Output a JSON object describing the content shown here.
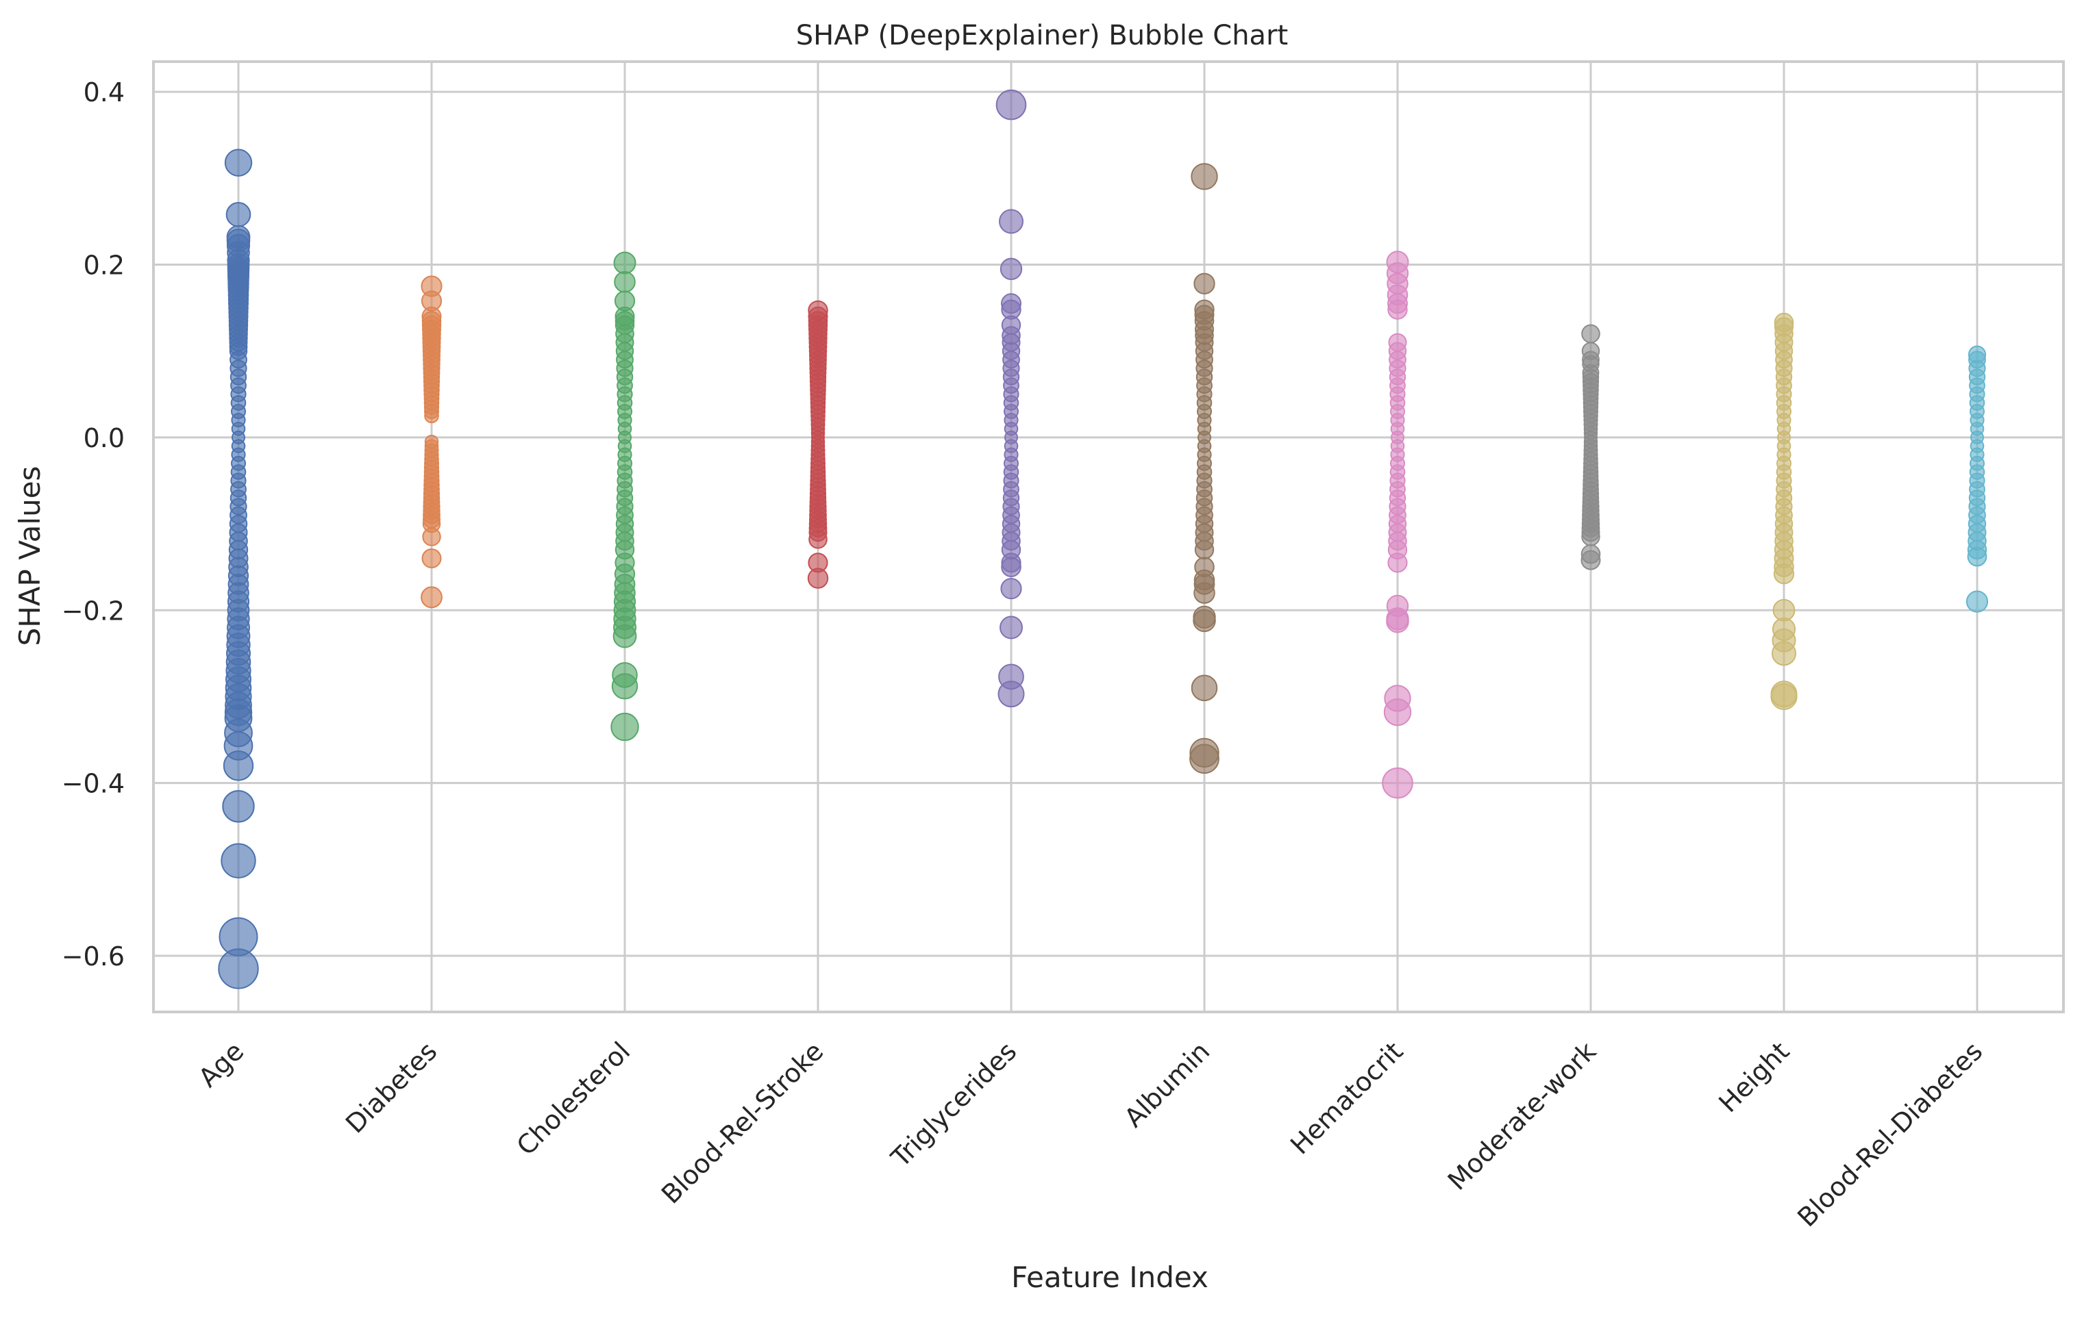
{
  "chart_data": {
    "type": "scatter",
    "title": "SHAP (DeepExplainer) Bubble Chart",
    "xlabel": "Feature Index",
    "ylabel": "SHAP Values",
    "ylim": [
      -0.665,
      0.435
    ],
    "grid": true,
    "yticks": [
      {
        "value": -0.6,
        "label": "−0.6"
      },
      {
        "value": -0.4,
        "label": "−0.4"
      },
      {
        "value": -0.2,
        "label": "−0.2"
      },
      {
        "value": 0.0,
        "label": "0.0"
      },
      {
        "value": 0.2,
        "label": "0.2"
      },
      {
        "value": 0.4,
        "label": "0.4"
      }
    ],
    "categories": [
      "Age",
      "Diabetes",
      "Cholesterol",
      "Blood-Rel-Stroke",
      "Triglycerides",
      "Albumin",
      "Hematocrit",
      "Moderate-work",
      "Height",
      "Blood-Rel-Diabetes"
    ],
    "series": [
      {
        "color": "#4c72b0",
        "values": [
          0.318,
          0.258,
          0.232,
          0.228,
          0.222,
          0.214,
          0.205,
          0.2,
          0.196,
          0.193,
          0.19,
          0.186,
          0.182,
          0.178,
          0.174,
          0.17,
          0.165,
          0.16,
          0.155,
          0.15,
          0.145,
          0.14,
          0.135,
          0.13,
          0.125,
          0.12,
          0.115,
          0.11,
          0.105,
          0.1,
          0.09,
          0.08,
          0.07,
          0.06,
          0.05,
          0.04,
          0.03,
          0.02,
          0.01,
          0.0,
          -0.01,
          -0.02,
          -0.03,
          -0.04,
          -0.05,
          -0.06,
          -0.07,
          -0.08,
          -0.09,
          -0.1,
          -0.11,
          -0.12,
          -0.13,
          -0.14,
          -0.15,
          -0.16,
          -0.17,
          -0.18,
          -0.19,
          -0.2,
          -0.21,
          -0.22,
          -0.23,
          -0.24,
          -0.25,
          -0.26,
          -0.27,
          -0.28,
          -0.29,
          -0.3,
          -0.31,
          -0.318,
          -0.325,
          -0.342,
          -0.357,
          -0.38,
          -0.427,
          -0.49,
          -0.578,
          -0.615
        ]
      },
      {
        "color": "#dd8452",
        "values": [
          0.175,
          0.158,
          0.14,
          0.135,
          0.13,
          0.125,
          0.12,
          0.115,
          0.11,
          0.105,
          0.1,
          0.095,
          0.09,
          0.085,
          0.08,
          0.075,
          0.07,
          0.065,
          0.06,
          0.055,
          0.05,
          0.045,
          0.04,
          0.035,
          0.03,
          0.025,
          -0.005,
          -0.01,
          -0.015,
          -0.02,
          -0.025,
          -0.03,
          -0.035,
          -0.04,
          -0.045,
          -0.05,
          -0.055,
          -0.06,
          -0.065,
          -0.07,
          -0.075,
          -0.08,
          -0.085,
          -0.09,
          -0.095,
          -0.1,
          -0.115,
          -0.14,
          -0.185
        ]
      },
      {
        "color": "#55a868",
        "values": [
          0.202,
          0.18,
          0.158,
          0.14,
          0.135,
          0.13,
          0.12,
          0.11,
          0.1,
          0.09,
          0.08,
          0.07,
          0.06,
          0.05,
          0.04,
          0.03,
          0.02,
          0.01,
          0.0,
          -0.01,
          -0.02,
          -0.03,
          -0.04,
          -0.05,
          -0.06,
          -0.07,
          -0.08,
          -0.09,
          -0.1,
          -0.11,
          -0.12,
          -0.13,
          -0.145,
          -0.158,
          -0.17,
          -0.18,
          -0.19,
          -0.2,
          -0.21,
          -0.22,
          -0.23,
          -0.275,
          -0.288,
          -0.335
        ]
      },
      {
        "color": "#c44e52",
        "values": [
          0.147,
          0.14,
          0.135,
          0.13,
          0.125,
          0.12,
          0.115,
          0.11,
          0.105,
          0.1,
          0.095,
          0.09,
          0.085,
          0.08,
          0.075,
          0.07,
          0.065,
          0.06,
          0.055,
          0.05,
          0.045,
          0.04,
          0.035,
          0.03,
          0.025,
          0.02,
          0.015,
          0.01,
          0.005,
          0.0,
          -0.005,
          -0.01,
          -0.015,
          -0.02,
          -0.025,
          -0.03,
          -0.035,
          -0.04,
          -0.045,
          -0.05,
          -0.055,
          -0.06,
          -0.065,
          -0.07,
          -0.075,
          -0.08,
          -0.085,
          -0.09,
          -0.095,
          -0.1,
          -0.105,
          -0.11,
          -0.118,
          -0.145,
          -0.163
        ]
      },
      {
        "color": "#8172b3",
        "values": [
          0.385,
          0.25,
          0.195,
          0.155,
          0.148,
          0.13,
          0.118,
          0.11,
          0.1,
          0.09,
          0.08,
          0.07,
          0.06,
          0.05,
          0.04,
          0.03,
          0.02,
          0.01,
          0.0,
          -0.01,
          -0.02,
          -0.03,
          -0.04,
          -0.05,
          -0.06,
          -0.07,
          -0.08,
          -0.09,
          -0.1,
          -0.11,
          -0.12,
          -0.13,
          -0.145,
          -0.15,
          -0.175,
          -0.22,
          -0.277,
          -0.297
        ]
      },
      {
        "color": "#937860",
        "values": [
          0.302,
          0.178,
          0.148,
          0.142,
          0.135,
          0.125,
          0.118,
          0.11,
          0.1,
          0.09,
          0.08,
          0.07,
          0.06,
          0.05,
          0.04,
          0.03,
          0.02,
          0.01,
          0.0,
          -0.01,
          -0.02,
          -0.03,
          -0.04,
          -0.05,
          -0.06,
          -0.07,
          -0.08,
          -0.09,
          -0.1,
          -0.11,
          -0.12,
          -0.13,
          -0.15,
          -0.165,
          -0.17,
          -0.18,
          -0.208,
          -0.212,
          -0.29,
          -0.365,
          -0.372
        ]
      },
      {
        "color": "#da8bc3",
        "values": [
          0.203,
          0.19,
          0.178,
          0.165,
          0.155,
          0.148,
          0.11,
          0.1,
          0.09,
          0.08,
          0.07,
          0.06,
          0.05,
          0.04,
          0.03,
          0.02,
          0.01,
          0.0,
          -0.01,
          -0.02,
          -0.03,
          -0.04,
          -0.05,
          -0.06,
          -0.07,
          -0.08,
          -0.09,
          -0.1,
          -0.11,
          -0.12,
          -0.13,
          -0.145,
          -0.195,
          -0.21,
          -0.213,
          -0.302,
          -0.318,
          -0.4
        ]
      },
      {
        "color": "#8c8c8c",
        "values": [
          0.12,
          0.1,
          0.09,
          0.085,
          0.075,
          0.07,
          0.065,
          0.06,
          0.055,
          0.05,
          0.045,
          0.04,
          0.035,
          0.03,
          0.025,
          0.02,
          0.015,
          0.01,
          0.005,
          0.0,
          -0.005,
          -0.01,
          -0.015,
          -0.02,
          -0.025,
          -0.03,
          -0.035,
          -0.04,
          -0.045,
          -0.05,
          -0.055,
          -0.06,
          -0.065,
          -0.07,
          -0.075,
          -0.08,
          -0.085,
          -0.09,
          -0.095,
          -0.1,
          -0.105,
          -0.11,
          -0.115,
          -0.135,
          -0.142
        ]
      },
      {
        "color": "#ccb974",
        "values": [
          0.133,
          0.128,
          0.12,
          0.11,
          0.1,
          0.09,
          0.08,
          0.07,
          0.06,
          0.05,
          0.04,
          0.03,
          0.02,
          0.01,
          0.0,
          -0.01,
          -0.02,
          -0.03,
          -0.04,
          -0.05,
          -0.06,
          -0.07,
          -0.08,
          -0.09,
          -0.1,
          -0.11,
          -0.12,
          -0.13,
          -0.14,
          -0.15,
          -0.158,
          -0.2,
          -0.222,
          -0.235,
          -0.25,
          -0.297,
          -0.3
        ]
      },
      {
        "color": "#64b5cd",
        "values": [
          0.096,
          0.09,
          0.08,
          0.07,
          0.06,
          0.05,
          0.04,
          0.03,
          0.02,
          0.01,
          0.0,
          -0.01,
          -0.02,
          -0.03,
          -0.04,
          -0.05,
          -0.06,
          -0.07,
          -0.08,
          -0.09,
          -0.1,
          -0.11,
          -0.12,
          -0.13,
          -0.138,
          -0.19
        ]
      }
    ]
  }
}
